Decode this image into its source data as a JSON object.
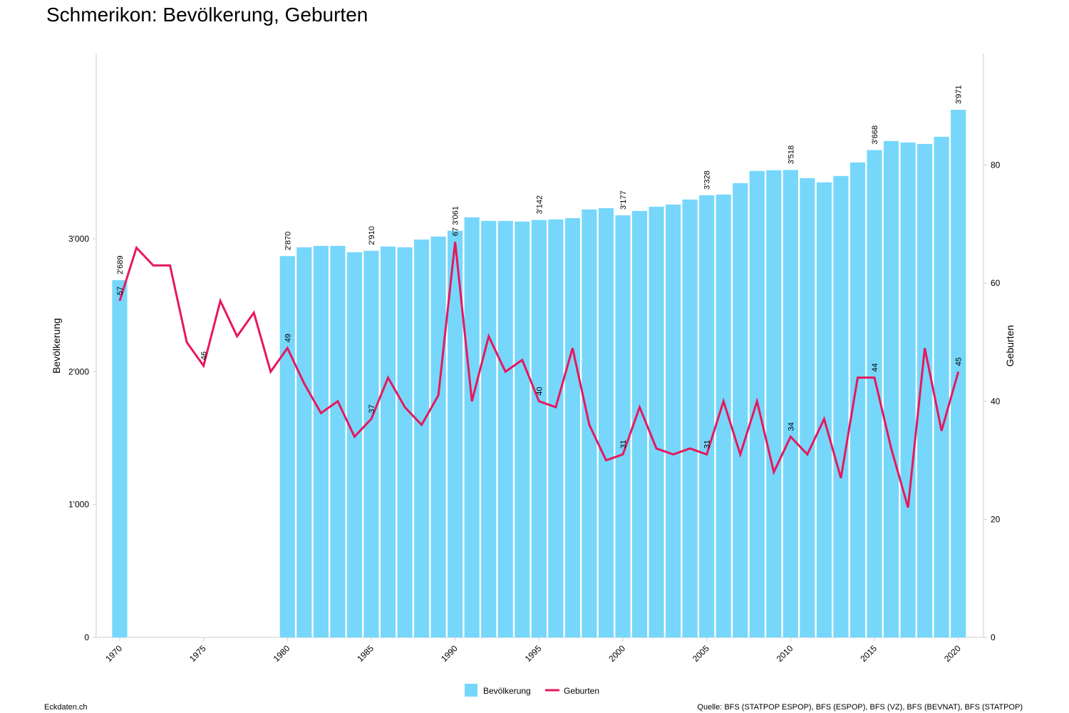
{
  "header": {
    "title": "Schmerikon: Bevölkerung, Geburten"
  },
  "chart_data": {
    "type": "bar-line",
    "x": [
      1970,
      1971,
      1972,
      1973,
      1974,
      1975,
      1976,
      1977,
      1978,
      1979,
      1980,
      1981,
      1982,
      1983,
      1984,
      1985,
      1986,
      1987,
      1988,
      1989,
      1990,
      1991,
      1992,
      1993,
      1994,
      1995,
      1996,
      1997,
      1998,
      1999,
      2000,
      2001,
      2002,
      2003,
      2004,
      2005,
      2006,
      2007,
      2008,
      2009,
      2010,
      2011,
      2012,
      2013,
      2014,
      2015,
      2016,
      2017,
      2018,
      2019,
      2020
    ],
    "xlim": [
      1968.6,
      2021.5
    ],
    "xticks": [
      1970,
      1975,
      1980,
      1985,
      1990,
      1995,
      2000,
      2005,
      2010,
      2015,
      2020
    ],
    "ylabel": "Bevölkerung",
    "ylim": [
      0,
      4395
    ],
    "yticks": [
      0,
      {
        "value": 1000,
        "label": "1'000"
      },
      {
        "value": 2000,
        "label": "2'000"
      },
      {
        "value": 3000,
        "label": "3'000"
      }
    ],
    "y2label": "Geburten",
    "y2lim": [
      0,
      98.9
    ],
    "y2ticks": [
      0,
      20,
      40,
      60,
      80
    ],
    "series": [
      {
        "name": "Bevölkerung",
        "kind": "bar",
        "color": "#76d7fb",
        "values": [
          2689,
          null,
          null,
          null,
          null,
          null,
          null,
          null,
          null,
          null,
          2870,
          2936,
          2947,
          2947,
          2899,
          2910,
          2942,
          2936,
          2995,
          3017,
          3061,
          3162,
          3135,
          3135,
          3130,
          3142,
          3146,
          3156,
          3221,
          3231,
          3177,
          3210,
          3242,
          3258,
          3296,
          3328,
          3333,
          3419,
          3511,
          3516,
          3518,
          3457,
          3425,
          3473,
          3575,
          3668,
          3736,
          3725,
          3714,
          3768,
          3971
        ],
        "value_labels": [
          "2'689",
          null,
          null,
          null,
          null,
          null,
          null,
          null,
          null,
          null,
          "2'870",
          null,
          null,
          null,
          null,
          "2'910",
          null,
          null,
          null,
          null,
          "3'061",
          null,
          null,
          null,
          null,
          "3'142",
          null,
          null,
          null,
          null,
          "3'177",
          null,
          null,
          null,
          null,
          "3'328",
          null,
          null,
          null,
          null,
          "3'518",
          null,
          null,
          null,
          null,
          "3'668",
          null,
          null,
          null,
          null,
          "3'971"
        ]
      },
      {
        "name": "Geburten",
        "kind": "line",
        "axis": "y2",
        "color": "#e8175d",
        "values": [
          57,
          66,
          63,
          63,
          50,
          46,
          57,
          51,
          55,
          45,
          49,
          43,
          38,
          40,
          34,
          37,
          44,
          39,
          36,
          41,
          67,
          40,
          51,
          45,
          47,
          40,
          39,
          49,
          36,
          30,
          31,
          39,
          32,
          31,
          32,
          31,
          40,
          31,
          40,
          28,
          34,
          31,
          37,
          27,
          44,
          44,
          32,
          22,
          49,
          35,
          45
        ],
        "value_labels": [
          "57",
          null,
          null,
          null,
          null,
          "46",
          null,
          null,
          null,
          null,
          "49",
          null,
          null,
          null,
          null,
          "37",
          null,
          null,
          null,
          null,
          "67",
          null,
          null,
          null,
          null,
          "40",
          null,
          null,
          null,
          null,
          "31",
          null,
          null,
          null,
          null,
          "31",
          null,
          null,
          null,
          null,
          "34",
          null,
          null,
          null,
          null,
          "44",
          null,
          null,
          null,
          null,
          "45"
        ]
      }
    ]
  },
  "footer": {
    "left": "Eckdaten.ch",
    "right": "Quelle: BFS (STATPOP ESPOP), BFS (ESPOP), BFS (VZ), BFS (BEVNAT), BFS (STATPOP)"
  }
}
